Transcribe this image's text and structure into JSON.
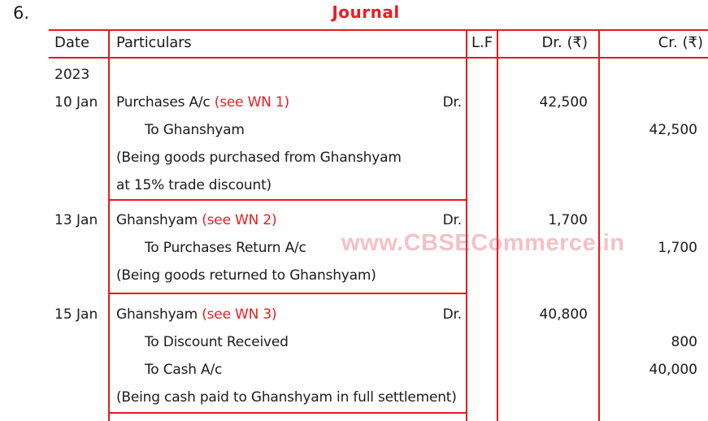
{
  "page": {
    "question_number": "6.",
    "title": "Journal",
    "watermark": "www.CBSECommerce.in"
  },
  "colors": {
    "rule_red": "#e8191d",
    "accent_red": "#ed1c24",
    "text": "#1b1b1b",
    "watermark_pink": "rgba(226,48,70,0.30)"
  },
  "table": {
    "headers": {
      "date": "Date",
      "particulars": "Particulars",
      "lf": "L.F",
      "dr": "Dr. (₹)",
      "cr": "Cr. (₹)"
    },
    "year": "2023",
    "entries": [
      {
        "date": "10 Jan",
        "title_text": "Purchases A/c ",
        "title_note": "(see WN 1)",
        "dr_label": "Dr.",
        "credit_lines": [
          "To Ghanshyam"
        ],
        "narration_lines": [
          "(Being goods purchased from Ghanshyam",
          "at 15% trade discount)"
        ],
        "dr_amounts": [
          "42,500"
        ],
        "cr_amounts": [
          "",
          "42,500"
        ]
      },
      {
        "date": "13 Jan",
        "title_text": "Ghanshyam ",
        "title_note": "(see WN 2)",
        "dr_label": "Dr.",
        "credit_lines": [
          "To Purchases Return A/c"
        ],
        "narration_lines": [
          "(Being goods returned to Ghanshyam)"
        ],
        "dr_amounts": [
          "1,700"
        ],
        "cr_amounts": [
          "",
          "1,700"
        ]
      },
      {
        "date": "15 Jan",
        "title_text": "Ghanshyam ",
        "title_note": "(see WN 3)",
        "dr_label": "Dr.",
        "credit_lines": [
          "To Discount Received",
          "To Cash A/c"
        ],
        "narration_lines": [
          "(Being cash paid to Ghanshyam in full settlement)"
        ],
        "dr_amounts": [
          "40,800"
        ],
        "cr_amounts": [
          "",
          "800",
          "40,000"
        ]
      }
    ]
  }
}
